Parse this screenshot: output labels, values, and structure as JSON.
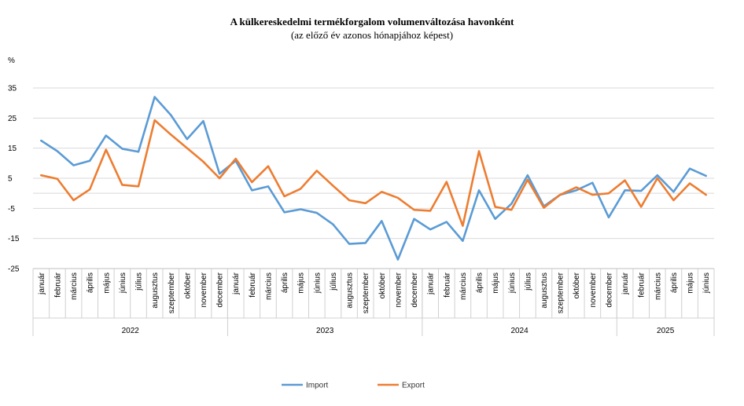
{
  "chart_data": {
    "type": "line",
    "title": "A külkereskedelmi termékforgalom volumenváltozása havonként",
    "subtitle": "(az előző év azonos hónapjához képest)",
    "ylabel": "%",
    "xlabel": "",
    "ylim": [
      -25,
      35
    ],
    "yticks": [
      35,
      25,
      15,
      5,
      -5,
      -15,
      -25
    ],
    "grid": true,
    "legend": "bottom",
    "months": [
      "január",
      "február",
      "március",
      "április",
      "május",
      "június",
      "július",
      "augusztus",
      "szeptember",
      "október",
      "november",
      "december",
      "január",
      "február",
      "március",
      "április",
      "május",
      "június",
      "július",
      "augusztus",
      "szeptember",
      "október",
      "november",
      "december",
      "január",
      "február",
      "március",
      "április",
      "május",
      "június",
      "július",
      "augusztus",
      "szeptember",
      "október",
      "november",
      "december",
      "január",
      "február",
      "március",
      "április",
      "május",
      "június"
    ],
    "years": [
      {
        "label": "2022",
        "count": 12
      },
      {
        "label": "2023",
        "count": 12
      },
      {
        "label": "2024",
        "count": 12
      },
      {
        "label": "2025",
        "count": 6
      }
    ],
    "series": [
      {
        "name": "Import",
        "color": "#5B9BD5",
        "values": [
          17.5,
          14,
          9.3,
          10.8,
          19.2,
          14.8,
          13.8,
          32,
          26,
          18,
          24,
          6.5,
          10.8,
          1,
          2.3,
          -6.3,
          -5.3,
          -6.5,
          -10.3,
          -16.8,
          -16.5,
          -9.2,
          -22,
          -8.5,
          -12,
          -9.5,
          -15.8,
          1,
          -8.5,
          -3.5,
          6,
          -4.3,
          -0.5,
          1,
          3.5,
          -8,
          1,
          0.8,
          6,
          0.5,
          8.2,
          5.8
        ]
      },
      {
        "name": "Export",
        "color": "#ED7D31",
        "values": [
          6,
          4.8,
          -2.3,
          1.3,
          14.5,
          2.8,
          2.3,
          24.3,
          19.5,
          15,
          10.5,
          5,
          11.5,
          3.7,
          9,
          -1,
          1.5,
          7.5,
          2.5,
          -2.3,
          -3.3,
          0.5,
          -1.5,
          -5.5,
          -5.8,
          3.8,
          -10.8,
          14,
          -4.5,
          -5.5,
          4.5,
          -4.8,
          -0.5,
          2,
          -0.5,
          0,
          4.3,
          -4.5,
          5,
          -2.3,
          3.3,
          -0.5
        ]
      }
    ]
  }
}
